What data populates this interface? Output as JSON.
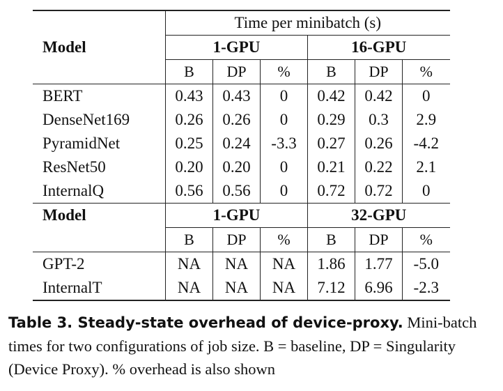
{
  "table": {
    "super_header": "Time per minibatch (s)",
    "model_label": "Model",
    "groups_a": [
      "1-GPU",
      "16-GPU"
    ],
    "groups_b": [
      "1-GPU",
      "32-GPU"
    ],
    "subcols": [
      "B",
      "DP",
      "%"
    ],
    "rows_a": [
      {
        "model": "BERT",
        "cells": [
          "0.43",
          "0.43",
          "0",
          "0.42",
          "0.42",
          "0"
        ]
      },
      {
        "model": "DenseNet169",
        "cells": [
          "0.26",
          "0.26",
          "0",
          "0.29",
          "0.3",
          "2.9"
        ]
      },
      {
        "model": "PyramidNet",
        "cells": [
          "0.25",
          "0.24",
          "-3.3",
          "0.27",
          "0.26",
          "-4.2"
        ]
      },
      {
        "model": "ResNet50",
        "cells": [
          "0.20",
          "0.20",
          "0",
          "0.21",
          "0.22",
          "2.1"
        ]
      },
      {
        "model": "InternalQ",
        "cells": [
          "0.56",
          "0.56",
          "0",
          "0.72",
          "0.72",
          "0"
        ]
      }
    ],
    "rows_b": [
      {
        "model": "GPT-2",
        "cells": [
          "NA",
          "NA",
          "NA",
          "1.86",
          "1.77",
          "-5.0"
        ]
      },
      {
        "model": "InternalT",
        "cells": [
          "NA",
          "NA",
          "NA",
          "7.12",
          "6.96",
          "-2.3"
        ]
      }
    ]
  },
  "caption": {
    "bold": "Table 3. Steady-state overhead of device-proxy.",
    "text": " Mini-batch times for two configurations of job size. B = baseline, DP = Singularity (Device Proxy). % overhead is also shown"
  }
}
